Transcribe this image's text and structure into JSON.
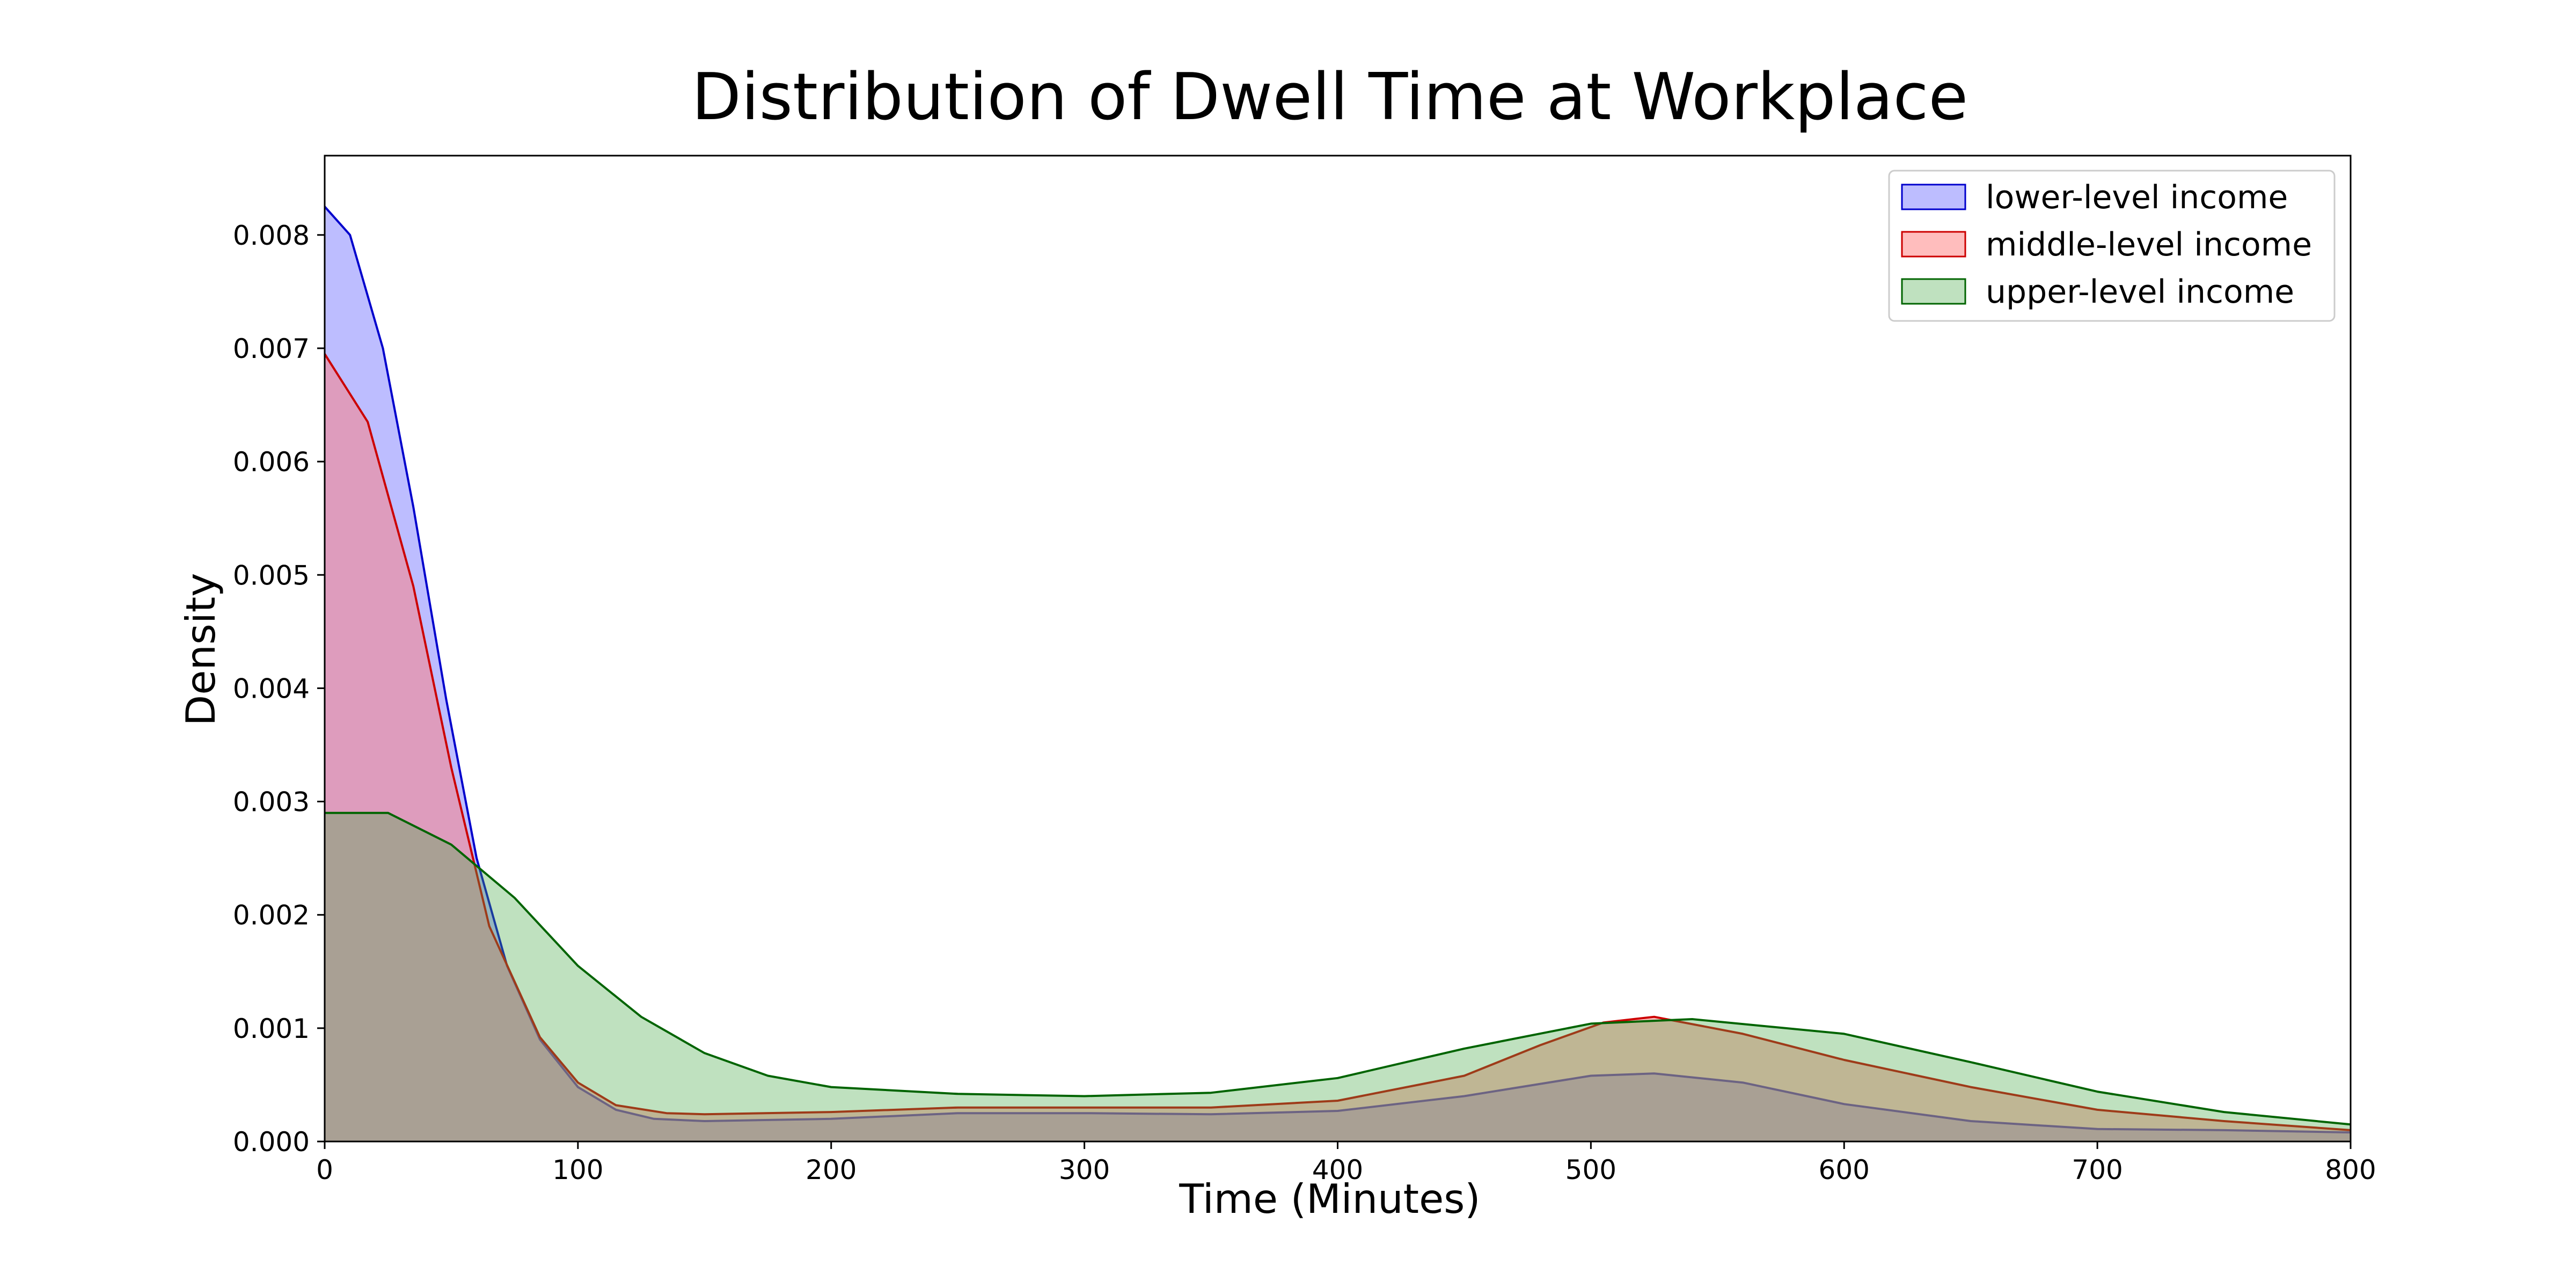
{
  "chart_data": {
    "type": "area",
    "title": "Distribution of Dwell Time at Workplace",
    "xlabel": "Time (Minutes)",
    "ylabel": "Density",
    "xlim": [
      0,
      800
    ],
    "ylim": [
      0,
      0.0087
    ],
    "xticks": [
      "0",
      "100",
      "200",
      "300",
      "400",
      "500",
      "600",
      "700",
      "800"
    ],
    "yticks": [
      "0.000",
      "0.001",
      "0.002",
      "0.003",
      "0.004",
      "0.005",
      "0.006",
      "0.007",
      "0.008"
    ],
    "grid": false,
    "legend_position": "top-right",
    "series": [
      {
        "name": "lower-level income",
        "line_color": "#0000cc",
        "fill_color": "#7b7bff",
        "fill_opacity": 0.5,
        "points": [
          [
            0,
            0.00825
          ],
          [
            10,
            0.008
          ],
          [
            23,
            0.007
          ],
          [
            35,
            0.0056
          ],
          [
            48,
            0.0039
          ],
          [
            60,
            0.0025
          ],
          [
            72,
            0.00155
          ],
          [
            85,
            0.0009
          ],
          [
            100,
            0.00048
          ],
          [
            115,
            0.00028
          ],
          [
            130,
            0.0002
          ],
          [
            150,
            0.00018
          ],
          [
            200,
            0.0002
          ],
          [
            250,
            0.00025
          ],
          [
            300,
            0.00025
          ],
          [
            350,
            0.00024
          ],
          [
            400,
            0.00027
          ],
          [
            450,
            0.0004
          ],
          [
            500,
            0.00058
          ],
          [
            525,
            0.0006
          ],
          [
            560,
            0.00052
          ],
          [
            600,
            0.00033
          ],
          [
            650,
            0.00018
          ],
          [
            700,
            0.00011
          ],
          [
            750,
            0.0001
          ],
          [
            800,
            8e-05
          ]
        ]
      },
      {
        "name": "middle-level income",
        "line_color": "#cc0000",
        "fill_color": "#ff7b7b",
        "fill_opacity": 0.5,
        "points": [
          [
            0,
            0.00695
          ],
          [
            17,
            0.00635
          ],
          [
            35,
            0.0049
          ],
          [
            50,
            0.0033
          ],
          [
            65,
            0.0019
          ],
          [
            85,
            0.00092
          ],
          [
            100,
            0.00052
          ],
          [
            115,
            0.00032
          ],
          [
            135,
            0.00025
          ],
          [
            150,
            0.00024
          ],
          [
            200,
            0.00026
          ],
          [
            250,
            0.0003
          ],
          [
            300,
            0.0003
          ],
          [
            350,
            0.0003
          ],
          [
            400,
            0.00036
          ],
          [
            450,
            0.00058
          ],
          [
            480,
            0.00085
          ],
          [
            505,
            0.00105
          ],
          [
            525,
            0.0011
          ],
          [
            560,
            0.00095
          ],
          [
            600,
            0.00072
          ],
          [
            650,
            0.00048
          ],
          [
            700,
            0.00028
          ],
          [
            750,
            0.00018
          ],
          [
            800,
            0.0001
          ]
        ]
      },
      {
        "name": "upper-level income",
        "line_color": "#006400",
        "fill_color": "#48a848",
        "fill_opacity": 0.35,
        "points": [
          [
            0,
            0.0029
          ],
          [
            25,
            0.0029
          ],
          [
            50,
            0.00262
          ],
          [
            75,
            0.00215
          ],
          [
            100,
            0.00155
          ],
          [
            125,
            0.0011
          ],
          [
            150,
            0.00078
          ],
          [
            175,
            0.00058
          ],
          [
            200,
            0.00048
          ],
          [
            250,
            0.00042
          ],
          [
            300,
            0.0004
          ],
          [
            350,
            0.00043
          ],
          [
            400,
            0.00056
          ],
          [
            450,
            0.00082
          ],
          [
            500,
            0.00104
          ],
          [
            540,
            0.00108
          ],
          [
            600,
            0.00095
          ],
          [
            650,
            0.0007
          ],
          [
            700,
            0.00044
          ],
          [
            750,
            0.00026
          ],
          [
            800,
            0.00015
          ]
        ]
      }
    ]
  }
}
